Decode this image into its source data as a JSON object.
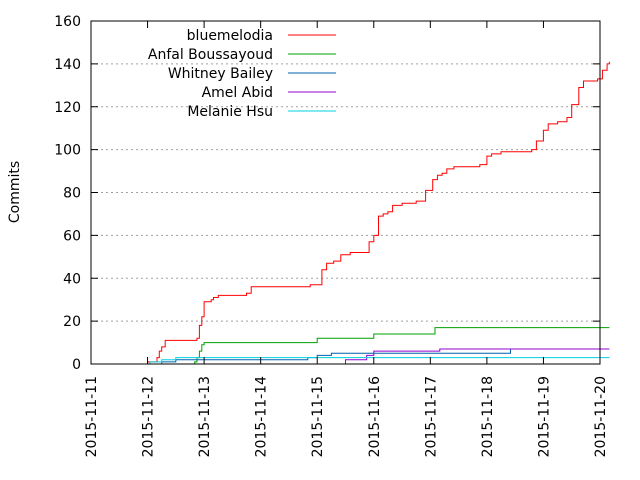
{
  "chart_data": {
    "type": "line",
    "title": "",
    "xlabel": "",
    "ylabel": "Commits",
    "xlim": [
      "2015-11-11",
      "2015-11-20"
    ],
    "ylim": [
      0,
      160
    ],
    "x_ticks": [
      "2015-11-11",
      "2015-11-12",
      "2015-11-13",
      "2015-11-14",
      "2015-11-15",
      "2015-11-16",
      "2015-11-17",
      "2015-11-18",
      "2015-11-19",
      "2015-11-20"
    ],
    "y_ticks": [
      0,
      20,
      40,
      60,
      80,
      100,
      120,
      140,
      160
    ],
    "grid": "horizontal dotted",
    "legend_position": "top-left",
    "series": [
      {
        "name": "bluemelodia",
        "color": "#ff0000",
        "points": [
          [
            "2015-11-11 21:30",
            0
          ],
          [
            "2015-11-12 00:00",
            1
          ],
          [
            "2015-11-12 04:00",
            3
          ],
          [
            "2015-11-12 05:00",
            6
          ],
          [
            "2015-11-12 06:00",
            8
          ],
          [
            "2015-11-12 07:30",
            11
          ],
          [
            "2015-11-12 12:00",
            11
          ],
          [
            "2015-11-12 21:00",
            12
          ],
          [
            "2015-11-12 22:00",
            18
          ],
          [
            "2015-11-12 23:00",
            22
          ],
          [
            "2015-11-13 00:00",
            29
          ],
          [
            "2015-11-13 03:00",
            30
          ],
          [
            "2015-11-13 04:00",
            31
          ],
          [
            "2015-11-13 06:00",
            32
          ],
          [
            "2015-11-13 18:00",
            33
          ],
          [
            "2015-11-13 20:00",
            36
          ],
          [
            "2015-11-14 14:00",
            36
          ],
          [
            "2015-11-14 21:00",
            37
          ],
          [
            "2015-11-15 00:00",
            37
          ],
          [
            "2015-11-15 02:00",
            44
          ],
          [
            "2015-11-15 04:00",
            47
          ],
          [
            "2015-11-15 07:00",
            48
          ],
          [
            "2015-11-15 10:00",
            51
          ],
          [
            "2015-11-15 14:00",
            52
          ],
          [
            "2015-11-15 21:00",
            52
          ],
          [
            "2015-11-15 22:00",
            57
          ],
          [
            "2015-11-16 00:00",
            60
          ],
          [
            "2015-11-16 02:00",
            69
          ],
          [
            "2015-11-16 04:00",
            70
          ],
          [
            "2015-11-16 06:00",
            71
          ],
          [
            "2015-11-16 08:00",
            74
          ],
          [
            "2015-11-16 12:00",
            75
          ],
          [
            "2015-11-16 18:00",
            76
          ],
          [
            "2015-11-16 22:00",
            81
          ],
          [
            "2015-11-17 01:00",
            86
          ],
          [
            "2015-11-17 03:00",
            88
          ],
          [
            "2015-11-17 05:00",
            89
          ],
          [
            "2015-11-17 07:00",
            91
          ],
          [
            "2015-11-17 10:00",
            92
          ],
          [
            "2015-11-17 18:00",
            92
          ],
          [
            "2015-11-17 21:00",
            93
          ],
          [
            "2015-11-18 00:00",
            97
          ],
          [
            "2015-11-18 02:00",
            98
          ],
          [
            "2015-11-18 06:00",
            99
          ],
          [
            "2015-11-18 19:00",
            100
          ],
          [
            "2015-11-18 21:00",
            104
          ],
          [
            "2015-11-19 00:00",
            109
          ],
          [
            "2015-11-19 02:00",
            112
          ],
          [
            "2015-11-19 06:00",
            113
          ],
          [
            "2015-11-19 10:00",
            115
          ],
          [
            "2015-11-19 12:00",
            121
          ],
          [
            "2015-11-19 15:00",
            129
          ],
          [
            "2015-11-19 17:00",
            132
          ],
          [
            "2015-11-19 20:00",
            132
          ],
          [
            "2015-11-19 23:00",
            133
          ],
          [
            "2015-11-20 01:00",
            137
          ],
          [
            "2015-11-20 03:00",
            140
          ],
          [
            "2015-11-20 04:00",
            141
          ]
        ]
      },
      {
        "name": "Anfal Boussayoud",
        "color": "#00a000",
        "points": [
          [
            "2015-11-12 17:00",
            0
          ],
          [
            "2015-11-12 20:00",
            1
          ],
          [
            "2015-11-12 21:00",
            3
          ],
          [
            "2015-11-12 22:00",
            6
          ],
          [
            "2015-11-12 23:00",
            9
          ],
          [
            "2015-11-13 00:00",
            10
          ],
          [
            "2015-11-14 21:00",
            10
          ],
          [
            "2015-11-15 00:00",
            12
          ],
          [
            "2015-11-16 00:00",
            14
          ],
          [
            "2015-11-17 00:00",
            14
          ],
          [
            "2015-11-17 02:00",
            17
          ],
          [
            "2015-11-20 04:00",
            17
          ]
        ]
      },
      {
        "name": "Whitney Bailey",
        "color": "#0060ad",
        "points": [
          [
            "2015-11-12 00:00",
            0
          ],
          [
            "2015-11-12 06:00",
            1
          ],
          [
            "2015-11-12 12:00",
            2
          ],
          [
            "2015-11-14 20:00",
            3
          ],
          [
            "2015-11-15 00:00",
            4
          ],
          [
            "2015-11-15 06:00",
            5
          ],
          [
            "2015-11-18 06:00",
            5
          ],
          [
            "2015-11-18 10:00",
            7
          ],
          [
            "2015-11-20 04:00",
            7
          ]
        ]
      },
      {
        "name": "Amel Abid",
        "color": "#9400d3",
        "points": [
          [
            "2015-11-15 00:00",
            0
          ],
          [
            "2015-11-15 12:00",
            2
          ],
          [
            "2015-11-15 21:00",
            4
          ],
          [
            "2015-11-16 00:00",
            6
          ],
          [
            "2015-11-17 00:00",
            6
          ],
          [
            "2015-11-17 04:00",
            7
          ],
          [
            "2015-11-20 04:00",
            7
          ]
        ]
      },
      {
        "name": "Melanie Hsu",
        "color": "#00d0e0",
        "points": [
          [
            "2015-11-11 23:00",
            0
          ],
          [
            "2015-11-12 01:00",
            1
          ],
          [
            "2015-11-12 06:00",
            2
          ],
          [
            "2015-11-12 12:00",
            3
          ],
          [
            "2015-11-20 04:00",
            3
          ]
        ]
      }
    ]
  }
}
